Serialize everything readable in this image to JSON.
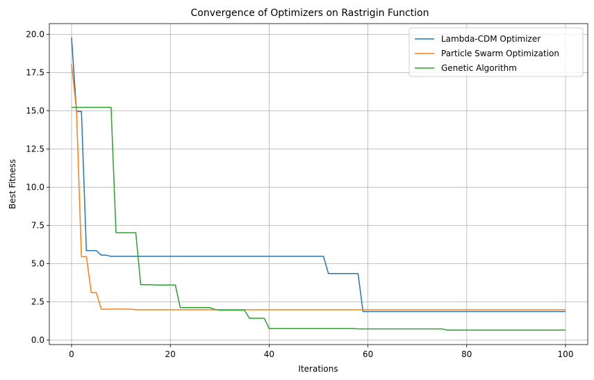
{
  "chart_data": {
    "type": "line",
    "title": "Convergence of Optimizers on Rastrigin Function",
    "xlabel": "Iterations",
    "ylabel": "Best Fitness",
    "xlim": [
      -4.5,
      104.5
    ],
    "ylim": [
      -0.3,
      20.7
    ],
    "x_ticks": [
      0,
      20,
      40,
      60,
      80,
      100
    ],
    "y_ticks": [
      0.0,
      2.5,
      5.0,
      7.5,
      10.0,
      12.5,
      15.0,
      17.5,
      20.0
    ],
    "x_tick_labels": [
      "0",
      "20",
      "40",
      "60",
      "80",
      "100"
    ],
    "y_tick_labels": [
      "0.0",
      "2.5",
      "5.0",
      "7.5",
      "10.0",
      "12.5",
      "15.0",
      "17.5",
      "20.0"
    ],
    "grid": true,
    "legend_position": "top-right",
    "series": [
      {
        "name": "Lambda-CDM Optimizer",
        "color": "#1f77b4",
        "points": [
          [
            0,
            19.8
          ],
          [
            1,
            14.95
          ],
          [
            2,
            14.95
          ],
          [
            3,
            5.85
          ],
          [
            4,
            5.85
          ],
          [
            5,
            5.85
          ],
          [
            6,
            5.55
          ],
          [
            7,
            5.55
          ],
          [
            8,
            5.47
          ],
          [
            51,
            5.47
          ],
          [
            52,
            4.35
          ],
          [
            58,
            4.35
          ],
          [
            59,
            1.86
          ],
          [
            100,
            1.86
          ]
        ]
      },
      {
        "name": "Particle Swarm Optimization",
        "color": "#ff7f0e",
        "points": [
          [
            0,
            18.05
          ],
          [
            1,
            15.0
          ],
          [
            2,
            5.45
          ],
          [
            3,
            5.45
          ],
          [
            4,
            3.1
          ],
          [
            5,
            3.1
          ],
          [
            6,
            2.02
          ],
          [
            12,
            2.02
          ],
          [
            13,
            1.98
          ],
          [
            100,
            1.98
          ]
        ]
      },
      {
        "name": "Genetic Algorithm",
        "color": "#2ca02c",
        "points": [
          [
            0,
            15.22
          ],
          [
            8,
            15.22
          ],
          [
            9,
            7.02
          ],
          [
            13,
            7.02
          ],
          [
            14,
            3.62
          ],
          [
            16,
            3.62
          ],
          [
            17,
            3.6
          ],
          [
            21,
            3.6
          ],
          [
            22,
            2.12
          ],
          [
            28,
            2.12
          ],
          [
            29,
            2.0
          ],
          [
            30,
            1.95
          ],
          [
            35,
            1.95
          ],
          [
            36,
            1.42
          ],
          [
            39,
            1.42
          ],
          [
            40,
            0.75
          ],
          [
            57,
            0.75
          ],
          [
            58,
            0.72
          ],
          [
            75,
            0.72
          ],
          [
            76,
            0.65
          ],
          [
            100,
            0.65
          ]
        ]
      }
    ]
  }
}
